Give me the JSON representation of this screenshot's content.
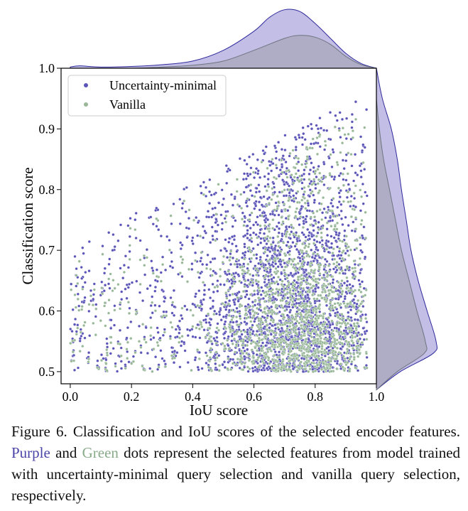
{
  "chart_data": {
    "type": "scatter",
    "title": "",
    "xlabel": "IoU score",
    "ylabel": "Classification score",
    "xlim": [
      -0.03,
      1.0
    ],
    "ylim": [
      0.48,
      1.0
    ],
    "xticks": [
      "0.0",
      "0.2",
      "0.4",
      "0.6",
      "0.8",
      "1.0"
    ],
    "yticks": [
      "0.5",
      "0.6",
      "0.7",
      "0.8",
      "0.9",
      "1.0"
    ],
    "legend_position": "top-left",
    "series": [
      {
        "name": "Uncertainty-minimal",
        "color": "#5b54b8",
        "density_fill": "#b9b3e0",
        "density_edge": "#2f2a9c",
        "x_distribution": {
          "mode": 0.72,
          "spread": 0.16,
          "min": 0.0,
          "max": 0.97
        },
        "y_distribution": {
          "mode": 0.55,
          "spread": 0.15,
          "min": 0.5,
          "max": 0.96
        },
        "x_density": [
          [
            0.0,
            0.02
          ],
          [
            0.03,
            0.04
          ],
          [
            0.1,
            0.02
          ],
          [
            0.2,
            0.03
          ],
          [
            0.3,
            0.06
          ],
          [
            0.4,
            0.12
          ],
          [
            0.5,
            0.3
          ],
          [
            0.6,
            0.62
          ],
          [
            0.65,
            0.85
          ],
          [
            0.7,
            0.98
          ],
          [
            0.75,
            0.95
          ],
          [
            0.8,
            0.75
          ],
          [
            0.85,
            0.5
          ],
          [
            0.9,
            0.25
          ],
          [
            0.95,
            0.08
          ],
          [
            1.0,
            0.0
          ]
        ],
        "y_density": [
          [
            0.47,
            0.0
          ],
          [
            0.5,
            0.4
          ],
          [
            0.53,
            0.95
          ],
          [
            0.55,
            1.0
          ],
          [
            0.6,
            0.85
          ],
          [
            0.65,
            0.7
          ],
          [
            0.7,
            0.58
          ],
          [
            0.75,
            0.5
          ],
          [
            0.8,
            0.42
          ],
          [
            0.85,
            0.35
          ],
          [
            0.9,
            0.25
          ],
          [
            0.95,
            0.1
          ],
          [
            1.0,
            0.0
          ]
        ]
      },
      {
        "name": "Vanilla",
        "color": "#98b898",
        "density_fill": "#a6a5b8",
        "density_edge": "#6d7480",
        "x_distribution": {
          "mode": 0.76,
          "spread": 0.13,
          "min": 0.0,
          "max": 0.97
        },
        "y_distribution": {
          "mode": 0.55,
          "spread": 0.1,
          "min": 0.5,
          "max": 0.93
        },
        "x_density": [
          [
            0.0,
            0.0
          ],
          [
            0.2,
            0.0
          ],
          [
            0.3,
            0.02
          ],
          [
            0.4,
            0.05
          ],
          [
            0.5,
            0.12
          ],
          [
            0.6,
            0.3
          ],
          [
            0.7,
            0.5
          ],
          [
            0.75,
            0.55
          ],
          [
            0.8,
            0.52
          ],
          [
            0.85,
            0.4
          ],
          [
            0.9,
            0.2
          ],
          [
            0.95,
            0.06
          ],
          [
            1.0,
            0.0
          ]
        ],
        "y_density": [
          [
            0.47,
            0.0
          ],
          [
            0.5,
            0.35
          ],
          [
            0.53,
            0.8
          ],
          [
            0.55,
            0.82
          ],
          [
            0.6,
            0.68
          ],
          [
            0.65,
            0.55
          ],
          [
            0.7,
            0.42
          ],
          [
            0.75,
            0.32
          ],
          [
            0.8,
            0.22
          ],
          [
            0.85,
            0.12
          ],
          [
            0.9,
            0.05
          ],
          [
            0.95,
            0.0
          ]
        ]
      }
    ]
  },
  "caption": {
    "prefix": "Figure 6.  Classification and IoU scores of the selected encoder features.",
    "purple_word": "Purple",
    "and_word": "and",
    "green_word": "Green",
    "suffix": "dots represent the selected features from model trained with uncertainty-minimal query selection and vanilla query selection, respectively."
  }
}
